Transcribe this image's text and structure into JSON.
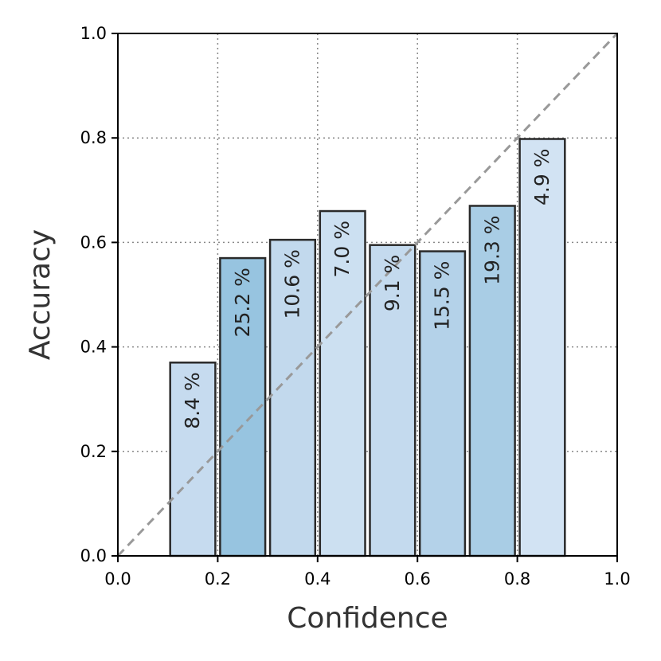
{
  "chart_data": {
    "type": "bar",
    "xlabel": "Confidence",
    "ylabel": "Accuracy",
    "xlim": [
      0.0,
      1.0
    ],
    "ylim": [
      0.0,
      1.0
    ],
    "xticks": [
      "0.0",
      "0.2",
      "0.4",
      "0.6",
      "0.8",
      "1.0"
    ],
    "yticks": [
      "0.0",
      "0.2",
      "0.4",
      "0.6",
      "0.8",
      "1.0"
    ],
    "grid": true,
    "reference_line": "diagonal y = x (dashed gray)",
    "bars": [
      {
        "x_start": 0.1,
        "x_end": 0.2,
        "accuracy": 0.37,
        "label": "8.4 %",
        "color": "#c6dbef"
      },
      {
        "x_start": 0.2,
        "x_end": 0.3,
        "accuracy": 0.57,
        "label": "25.2 %",
        "color": "#97c4e0"
      },
      {
        "x_start": 0.3,
        "x_end": 0.4,
        "accuracy": 0.605,
        "label": "10.6 %",
        "color": "#c2d9ed"
      },
      {
        "x_start": 0.4,
        "x_end": 0.5,
        "accuracy": 0.66,
        "label": "7.0 %",
        "color": "#cce0f1"
      },
      {
        "x_start": 0.5,
        "x_end": 0.6,
        "accuracy": 0.595,
        "label": "9.1 %",
        "color": "#c4daee"
      },
      {
        "x_start": 0.6,
        "x_end": 0.7,
        "accuracy": 0.583,
        "label": "15.5 %",
        "color": "#b4d2e9"
      },
      {
        "x_start": 0.7,
        "x_end": 0.8,
        "accuracy": 0.67,
        "label": "19.3 %",
        "color": "#a9cde5"
      },
      {
        "x_start": 0.8,
        "x_end": 0.9,
        "accuracy": 0.798,
        "label": "4.9 %",
        "color": "#d2e3f3"
      }
    ]
  }
}
